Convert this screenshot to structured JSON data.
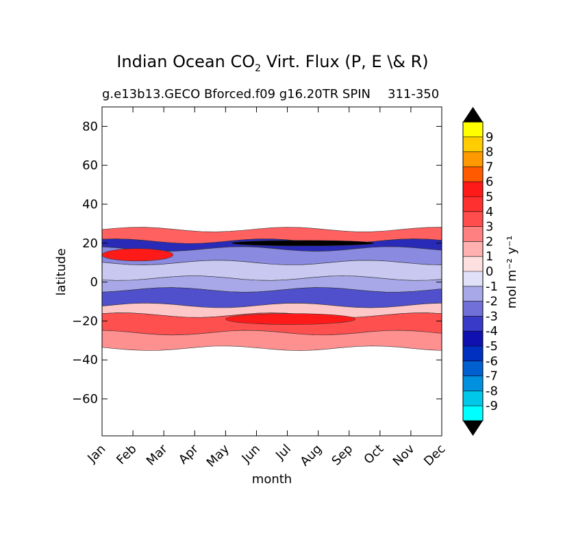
{
  "chart_data": {
    "type": "contour",
    "title_text": "Indian Ocean CO",
    "title_sub": "2",
    "title_rest": " Virt. Flux (P, E \\& R)",
    "subtitle": "g.e13b13.GECO Bforced.f09 g16.20TR SPIN",
    "subtitle_right": "311-350",
    "xlabel": "month",
    "ylabel": "latitude",
    "colorbar_label": "mol m⁻² y⁻¹",
    "x_categories": [
      "Jan",
      "Feb",
      "Mar",
      "Apr",
      "May",
      "Jun",
      "Jul",
      "Aug",
      "Sep",
      "Oct",
      "Nov",
      "Dec"
    ],
    "y_ticks": [
      80,
      60,
      40,
      20,
      0,
      -20,
      -40,
      -60
    ],
    "y_tick_labels": [
      "80",
      "60",
      "40",
      "20",
      "0",
      "−20",
      "−40",
      "−60"
    ],
    "ylim": [
      -79,
      90
    ],
    "data_lat_range": [
      -34,
      27
    ],
    "colorbar_levels": [
      "9",
      "8",
      "7",
      "6",
      "5",
      "4",
      "3",
      "2",
      "1",
      "0",
      "-1",
      "-2",
      "-3",
      "-4",
      "-5",
      "-6",
      "-7",
      "-8",
      "-9"
    ],
    "colorbar_colors": [
      "#ffff00",
      "#ffcc00",
      "#ff9900",
      "#ff5a00",
      "#ff1a1a",
      "#ff3030",
      "#ff4d4d",
      "#ff8080",
      "#ffb0b0",
      "#ffe0e0",
      "#e0e0f8",
      "#a8a8e8",
      "#7070d8",
      "#3a3ac8",
      "#1010b0",
      "#0030c0",
      "#0060d0",
      "#0090e0",
      "#00c8e8",
      "#00ffff"
    ],
    "colorbar_extend_colors": [
      "#000000",
      "#000000"
    ],
    "bands": [
      {
        "lat_top": 27,
        "lat_bottom": 21,
        "value": 3,
        "color": "#ff6060"
      },
      {
        "lat_top": 21,
        "lat_bottom": 17,
        "value": -4,
        "color": "#2a2ab8"
      },
      {
        "lat_top": 17,
        "lat_bottom": 10,
        "value": -2,
        "color": "#8a8ae0"
      },
      {
        "lat_top": 10,
        "lat_bottom": 2,
        "value": -1,
        "color": "#c8c8f0"
      },
      {
        "lat_top": 2,
        "lat_bottom": -4,
        "value": -1,
        "color": "#a8a8e8"
      },
      {
        "lat_top": -4,
        "lat_bottom": -12,
        "value": -3,
        "color": "#5050cc"
      },
      {
        "lat_top": -12,
        "lat_bottom": -17,
        "value": 1,
        "color": "#ffc8c8"
      },
      {
        "lat_top": -17,
        "lat_bottom": -26,
        "value": 3,
        "color": "#ff5050"
      },
      {
        "lat_top": -26,
        "lat_bottom": -34,
        "value": 2,
        "color": "#ff9090"
      }
    ],
    "features": [
      {
        "name": "black-core-jul",
        "month_start": 4.2,
        "month_end": 8.8,
        "lat": 20,
        "value": -10
      },
      {
        "name": "red-max-jul",
        "month_start": 4.0,
        "month_end": 8.2,
        "lat": -19,
        "value": 4
      },
      {
        "name": "red-northwest",
        "month_start": 0,
        "month_end": 2.3,
        "lat": 14,
        "value": 5
      }
    ]
  }
}
